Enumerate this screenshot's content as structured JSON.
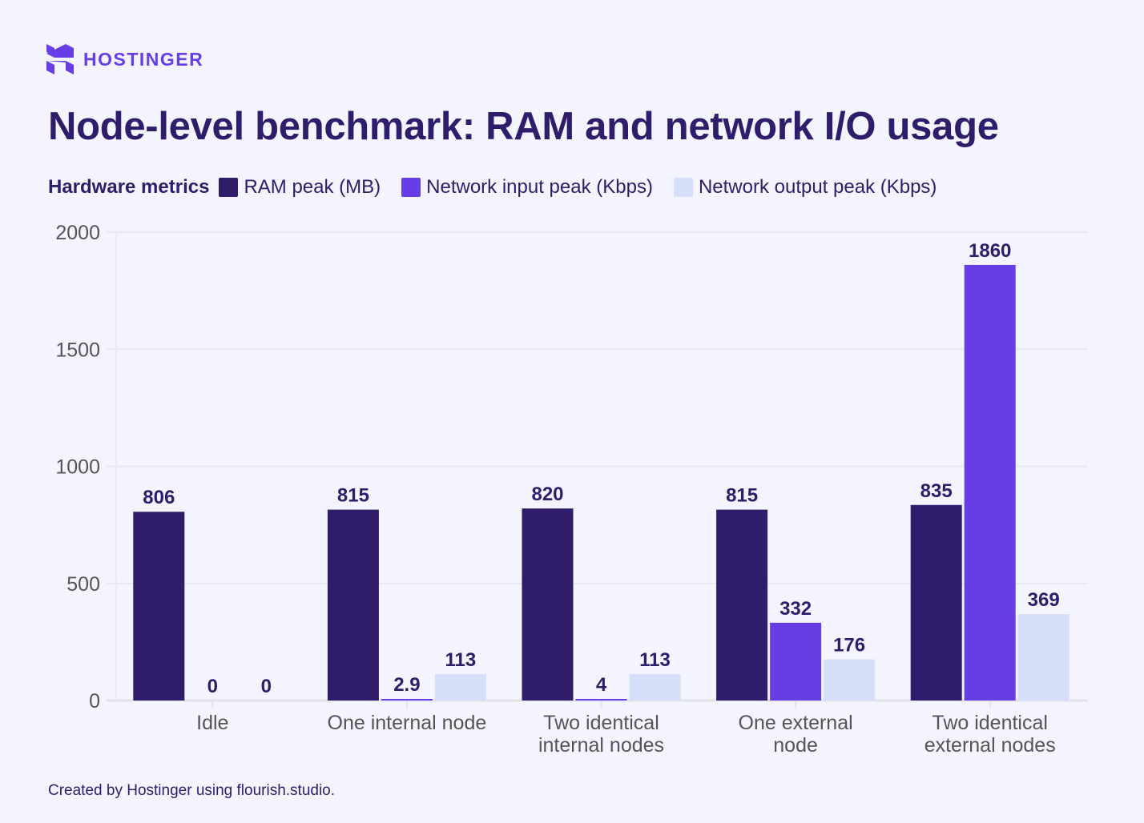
{
  "brand": {
    "name": "HOSTINGER"
  },
  "footer": "Created by Hostinger using flourish.studio.",
  "chart_data": {
    "type": "bar",
    "title": "Node-level benchmark: RAM and network I/O usage",
    "legend_title": "Hardware metrics",
    "legend_placement": "top-left",
    "categories": [
      [
        "Idle"
      ],
      [
        "One internal node"
      ],
      [
        "Two identical",
        "internal nodes"
      ],
      [
        "One external",
        "node"
      ],
      [
        "Two identical",
        "external nodes"
      ]
    ],
    "series": [
      {
        "name": "RAM peak (MB)",
        "color": "#2f1c6a",
        "values": [
          806,
          815,
          820,
          815,
          835
        ],
        "labels": [
          "806",
          "815",
          "820",
          "815",
          "835"
        ]
      },
      {
        "name": "Network input peak (Kbps)",
        "color": "#673de6",
        "values": [
          0,
          2.9,
          4,
          332,
          1860
        ],
        "labels": [
          "0",
          "2.9",
          "4",
          "332",
          "1860"
        ]
      },
      {
        "name": "Network output peak (Kbps)",
        "color": "#d5dffa",
        "values": [
          0,
          113,
          113,
          176,
          369
        ],
        "labels": [
          "0",
          "113",
          "113",
          "176",
          "369"
        ]
      }
    ],
    "ylim": [
      0,
      2000
    ],
    "yticks": [
      0,
      500,
      1000,
      1500,
      2000
    ],
    "grid": true,
    "xlabel": "",
    "ylabel": ""
  }
}
